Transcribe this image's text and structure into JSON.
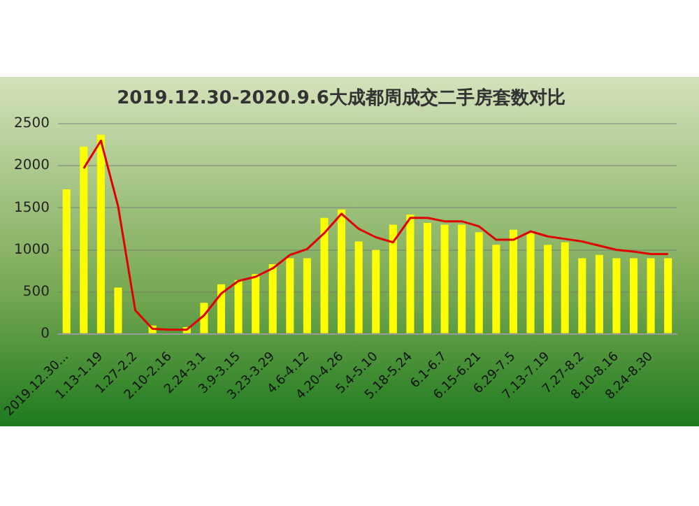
{
  "chart_data": {
    "type": "bar",
    "title": "2019.12.30-2020.9.6大成都周成交二手房套数对比",
    "categories": [
      "2019.12.30...",
      null,
      "1.13-1.19",
      null,
      "1.27-2.2",
      null,
      "2.10-2.16",
      null,
      "2.24-3.1",
      null,
      "3.9-3.15",
      null,
      "3.23-3.29",
      null,
      "4.6-4.12",
      null,
      "4.20-4.26",
      null,
      "5.4-5.10",
      null,
      "5.18-5.24",
      null,
      "6.1-6.7",
      null,
      "6.15-6.21",
      null,
      "6.29-7.5",
      null,
      "7.13-7.19",
      null,
      "7.27-8.2",
      null,
      "8.10-8.16",
      null,
      "8.24-8.30",
      null
    ],
    "series": [
      {
        "color": "#ffff00",
        "values": [
          1720,
          2230,
          2370,
          550,
          0,
          100,
          0,
          80,
          370,
          590,
          640,
          710,
          830,
          900,
          900,
          1380,
          1480,
          1100,
          1000,
          1300,
          1420,
          1320,
          1300,
          1300,
          1210,
          1060,
          1240,
          1200,
          1060,
          1090,
          900,
          940,
          900,
          900,
          900,
          900
        ]
      },
      {
        "type": "line",
        "color": "#e00000",
        "values": [
          null,
          1970,
          2300,
          1520,
          280,
          60,
          50,
          50,
          220,
          480,
          630,
          680,
          780,
          940,
          1010,
          1200,
          1430,
          1250,
          1150,
          1090,
          1380,
          1380,
          1340,
          1340,
          1280,
          1120,
          1120,
          1220,
          1160,
          1130,
          1100,
          1050,
          1000,
          980,
          950,
          950
        ]
      }
    ],
    "ylim": [
      0,
      2500
    ],
    "yticks": [
      0,
      500,
      1000,
      1500,
      2000,
      2500
    ],
    "grid": "y",
    "legend": false,
    "marker": "none"
  }
}
